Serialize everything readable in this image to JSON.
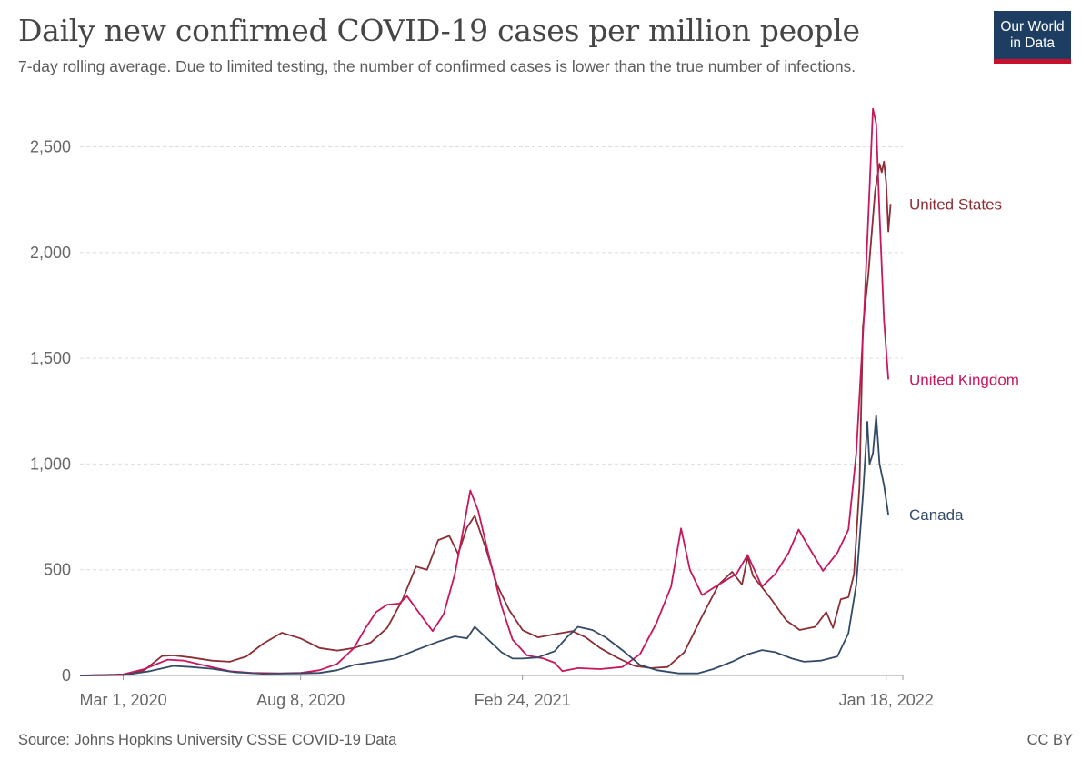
{
  "header": {
    "title": "Daily new confirmed COVID-19 cases per million people",
    "subtitle": "7-day rolling average. Due to limited testing, the number of confirmed cases is lower than the true number of infections."
  },
  "logo": {
    "line1": "Our World",
    "line2": "in Data",
    "bg_color": "#1d3d63",
    "accent_color": "#c8102e"
  },
  "footer": {
    "source": "Source: Johns Hopkins University CSSE COVID-19 Data",
    "license": "CC BY"
  },
  "chart_data": {
    "type": "line",
    "title": "Daily new confirmed COVID-19 cases per million people",
    "subtitle": "7-day rolling average. Due to limited testing, the number of confirmed cases is lower than the true number of infections.",
    "xlabel": "",
    "ylabel": "",
    "x_domain": [
      "2020-01-22",
      "2022-02-02"
    ],
    "ylim": [
      0,
      2700
    ],
    "y_ticks": [
      0,
      500,
      1000,
      1500,
      2000,
      2500
    ],
    "y_tick_labels": [
      "0",
      "500",
      "1,000",
      "1,500",
      "2,000",
      "2,500"
    ],
    "x_ticks": [
      "2020-03-01",
      "2020-08-08",
      "2021-02-24",
      "2022-01-18"
    ],
    "x_tick_labels": [
      "Mar 1, 2020",
      "Aug 8, 2020",
      "Feb 24, 2021",
      "Jan 18, 2022"
    ],
    "grid": {
      "horizontal": true,
      "style": "dashed"
    },
    "legend": "inline labels at line ends (right)",
    "series": [
      {
        "name": "United States",
        "color": "#8b2f35",
        "points": [
          [
            "2020-01-22",
            0
          ],
          [
            "2020-03-01",
            2
          ],
          [
            "2020-03-20",
            25
          ],
          [
            "2020-04-05",
            92
          ],
          [
            "2020-04-15",
            95
          ],
          [
            "2020-05-01",
            85
          ],
          [
            "2020-05-20",
            70
          ],
          [
            "2020-06-05",
            65
          ],
          [
            "2020-06-20",
            90
          ],
          [
            "2020-07-05",
            150
          ],
          [
            "2020-07-22",
            202
          ],
          [
            "2020-08-08",
            175
          ],
          [
            "2020-08-25",
            130
          ],
          [
            "2020-09-10",
            118
          ],
          [
            "2020-09-25",
            130
          ],
          [
            "2020-10-10",
            155
          ],
          [
            "2020-10-25",
            225
          ],
          [
            "2020-11-08",
            360
          ],
          [
            "2020-11-20",
            515
          ],
          [
            "2020-11-30",
            500
          ],
          [
            "2020-12-10",
            640
          ],
          [
            "2020-12-20",
            660
          ],
          [
            "2020-12-28",
            575
          ],
          [
            "2021-01-05",
            700
          ],
          [
            "2021-01-12",
            755
          ],
          [
            "2021-01-22",
            600
          ],
          [
            "2021-02-01",
            430
          ],
          [
            "2021-02-12",
            310
          ],
          [
            "2021-02-24",
            215
          ],
          [
            "2021-03-10",
            180
          ],
          [
            "2021-03-25",
            195
          ],
          [
            "2021-04-10",
            210
          ],
          [
            "2021-04-22",
            180
          ],
          [
            "2021-05-05",
            130
          ],
          [
            "2021-05-20",
            85
          ],
          [
            "2021-06-05",
            45
          ],
          [
            "2021-06-20",
            35
          ],
          [
            "2021-07-05",
            40
          ],
          [
            "2021-07-20",
            110
          ],
          [
            "2021-08-05",
            280
          ],
          [
            "2021-08-20",
            430
          ],
          [
            "2021-09-01",
            490
          ],
          [
            "2021-09-10",
            430
          ],
          [
            "2021-09-15",
            560
          ],
          [
            "2021-09-20",
            470
          ],
          [
            "2021-10-05",
            370
          ],
          [
            "2021-10-20",
            260
          ],
          [
            "2021-11-01",
            215
          ],
          [
            "2021-11-15",
            230
          ],
          [
            "2021-11-25",
            300
          ],
          [
            "2021-12-01",
            225
          ],
          [
            "2021-12-08",
            360
          ],
          [
            "2021-12-15",
            370
          ],
          [
            "2021-12-20",
            480
          ],
          [
            "2021-12-25",
            900
          ],
          [
            "2021-12-28",
            1650
          ],
          [
            "2022-01-02",
            1900
          ],
          [
            "2022-01-08",
            2290
          ],
          [
            "2022-01-12",
            2420
          ],
          [
            "2022-01-14",
            2380
          ],
          [
            "2022-01-16",
            2430
          ],
          [
            "2022-01-18",
            2330
          ],
          [
            "2022-01-20",
            2100
          ],
          [
            "2022-01-22",
            2230
          ]
        ]
      },
      {
        "name": "United Kingdom",
        "color": "#c8175e",
        "points": [
          [
            "2020-01-22",
            0
          ],
          [
            "2020-03-01",
            5
          ],
          [
            "2020-03-20",
            30
          ],
          [
            "2020-04-10",
            75
          ],
          [
            "2020-04-25",
            70
          ],
          [
            "2020-05-15",
            45
          ],
          [
            "2020-06-05",
            20
          ],
          [
            "2020-06-25",
            12
          ],
          [
            "2020-07-20",
            10
          ],
          [
            "2020-08-08",
            12
          ],
          [
            "2020-08-25",
            25
          ],
          [
            "2020-09-10",
            55
          ],
          [
            "2020-09-25",
            130
          ],
          [
            "2020-10-05",
            220
          ],
          [
            "2020-10-15",
            300
          ],
          [
            "2020-10-25",
            335
          ],
          [
            "2020-11-05",
            340
          ],
          [
            "2020-11-12",
            375
          ],
          [
            "2020-11-25",
            280
          ],
          [
            "2020-12-05",
            210
          ],
          [
            "2020-12-15",
            290
          ],
          [
            "2020-12-25",
            480
          ],
          [
            "2021-01-02",
            700
          ],
          [
            "2021-01-08",
            875
          ],
          [
            "2021-01-15",
            780
          ],
          [
            "2021-01-25",
            560
          ],
          [
            "2021-02-05",
            330
          ],
          [
            "2021-02-15",
            170
          ],
          [
            "2021-02-28",
            95
          ],
          [
            "2021-03-15",
            80
          ],
          [
            "2021-03-25",
            60
          ],
          [
            "2021-04-01",
            20
          ],
          [
            "2021-04-15",
            35
          ],
          [
            "2021-05-05",
            30
          ],
          [
            "2021-05-25",
            40
          ],
          [
            "2021-06-10",
            100
          ],
          [
            "2021-06-25",
            250
          ],
          [
            "2021-07-08",
            420
          ],
          [
            "2021-07-17",
            695
          ],
          [
            "2021-07-25",
            500
          ],
          [
            "2021-08-05",
            380
          ],
          [
            "2021-08-20",
            430
          ],
          [
            "2021-09-05",
            480
          ],
          [
            "2021-09-15",
            570
          ],
          [
            "2021-09-28",
            420
          ],
          [
            "2021-10-10",
            480
          ],
          [
            "2021-10-22",
            580
          ],
          [
            "2021-10-31",
            690
          ],
          [
            "2021-11-10",
            600
          ],
          [
            "2021-11-22",
            495
          ],
          [
            "2021-12-05",
            580
          ],
          [
            "2021-12-15",
            690
          ],
          [
            "2021-12-22",
            1050
          ],
          [
            "2021-12-29",
            1700
          ],
          [
            "2022-01-03",
            2300
          ],
          [
            "2022-01-06",
            2680
          ],
          [
            "2022-01-09",
            2610
          ],
          [
            "2022-01-12",
            2180
          ],
          [
            "2022-01-16",
            1680
          ],
          [
            "2022-01-20",
            1400
          ]
        ]
      },
      {
        "name": "Canada",
        "color": "#334b66",
        "points": [
          [
            "2020-01-22",
            0
          ],
          [
            "2020-03-01",
            2
          ],
          [
            "2020-03-25",
            20
          ],
          [
            "2020-04-15",
            45
          ],
          [
            "2020-05-01",
            40
          ],
          [
            "2020-05-20",
            32
          ],
          [
            "2020-06-10",
            15
          ],
          [
            "2020-07-05",
            8
          ],
          [
            "2020-08-08",
            10
          ],
          [
            "2020-08-25",
            12
          ],
          [
            "2020-09-10",
            25
          ],
          [
            "2020-09-25",
            50
          ],
          [
            "2020-10-15",
            65
          ],
          [
            "2020-11-01",
            80
          ],
          [
            "2020-11-20",
            120
          ],
          [
            "2020-12-10",
            160
          ],
          [
            "2020-12-25",
            185
          ],
          [
            "2021-01-05",
            175
          ],
          [
            "2021-01-12",
            230
          ],
          [
            "2021-01-25",
            165
          ],
          [
            "2021-02-05",
            110
          ],
          [
            "2021-02-15",
            80
          ],
          [
            "2021-02-24",
            80
          ],
          [
            "2021-03-10",
            85
          ],
          [
            "2021-03-25",
            115
          ],
          [
            "2021-04-05",
            180
          ],
          [
            "2021-04-15",
            230
          ],
          [
            "2021-04-28",
            215
          ],
          [
            "2021-05-10",
            180
          ],
          [
            "2021-05-25",
            120
          ],
          [
            "2021-06-10",
            50
          ],
          [
            "2021-06-25",
            25
          ],
          [
            "2021-07-15",
            10
          ],
          [
            "2021-08-01",
            10
          ],
          [
            "2021-08-15",
            30
          ],
          [
            "2021-09-01",
            65
          ],
          [
            "2021-09-15",
            100
          ],
          [
            "2021-09-28",
            120
          ],
          [
            "2021-10-10",
            110
          ],
          [
            "2021-10-25",
            80
          ],
          [
            "2021-11-05",
            65
          ],
          [
            "2021-11-20",
            70
          ],
          [
            "2021-12-05",
            90
          ],
          [
            "2021-12-15",
            200
          ],
          [
            "2021-12-22",
            430
          ],
          [
            "2021-12-28",
            850
          ],
          [
            "2022-01-01",
            1200
          ],
          [
            "2022-01-03",
            1000
          ],
          [
            "2022-01-06",
            1050
          ],
          [
            "2022-01-09",
            1230
          ],
          [
            "2022-01-12",
            1000
          ],
          [
            "2022-01-16",
            900
          ],
          [
            "2022-01-20",
            760
          ]
        ]
      }
    ]
  }
}
